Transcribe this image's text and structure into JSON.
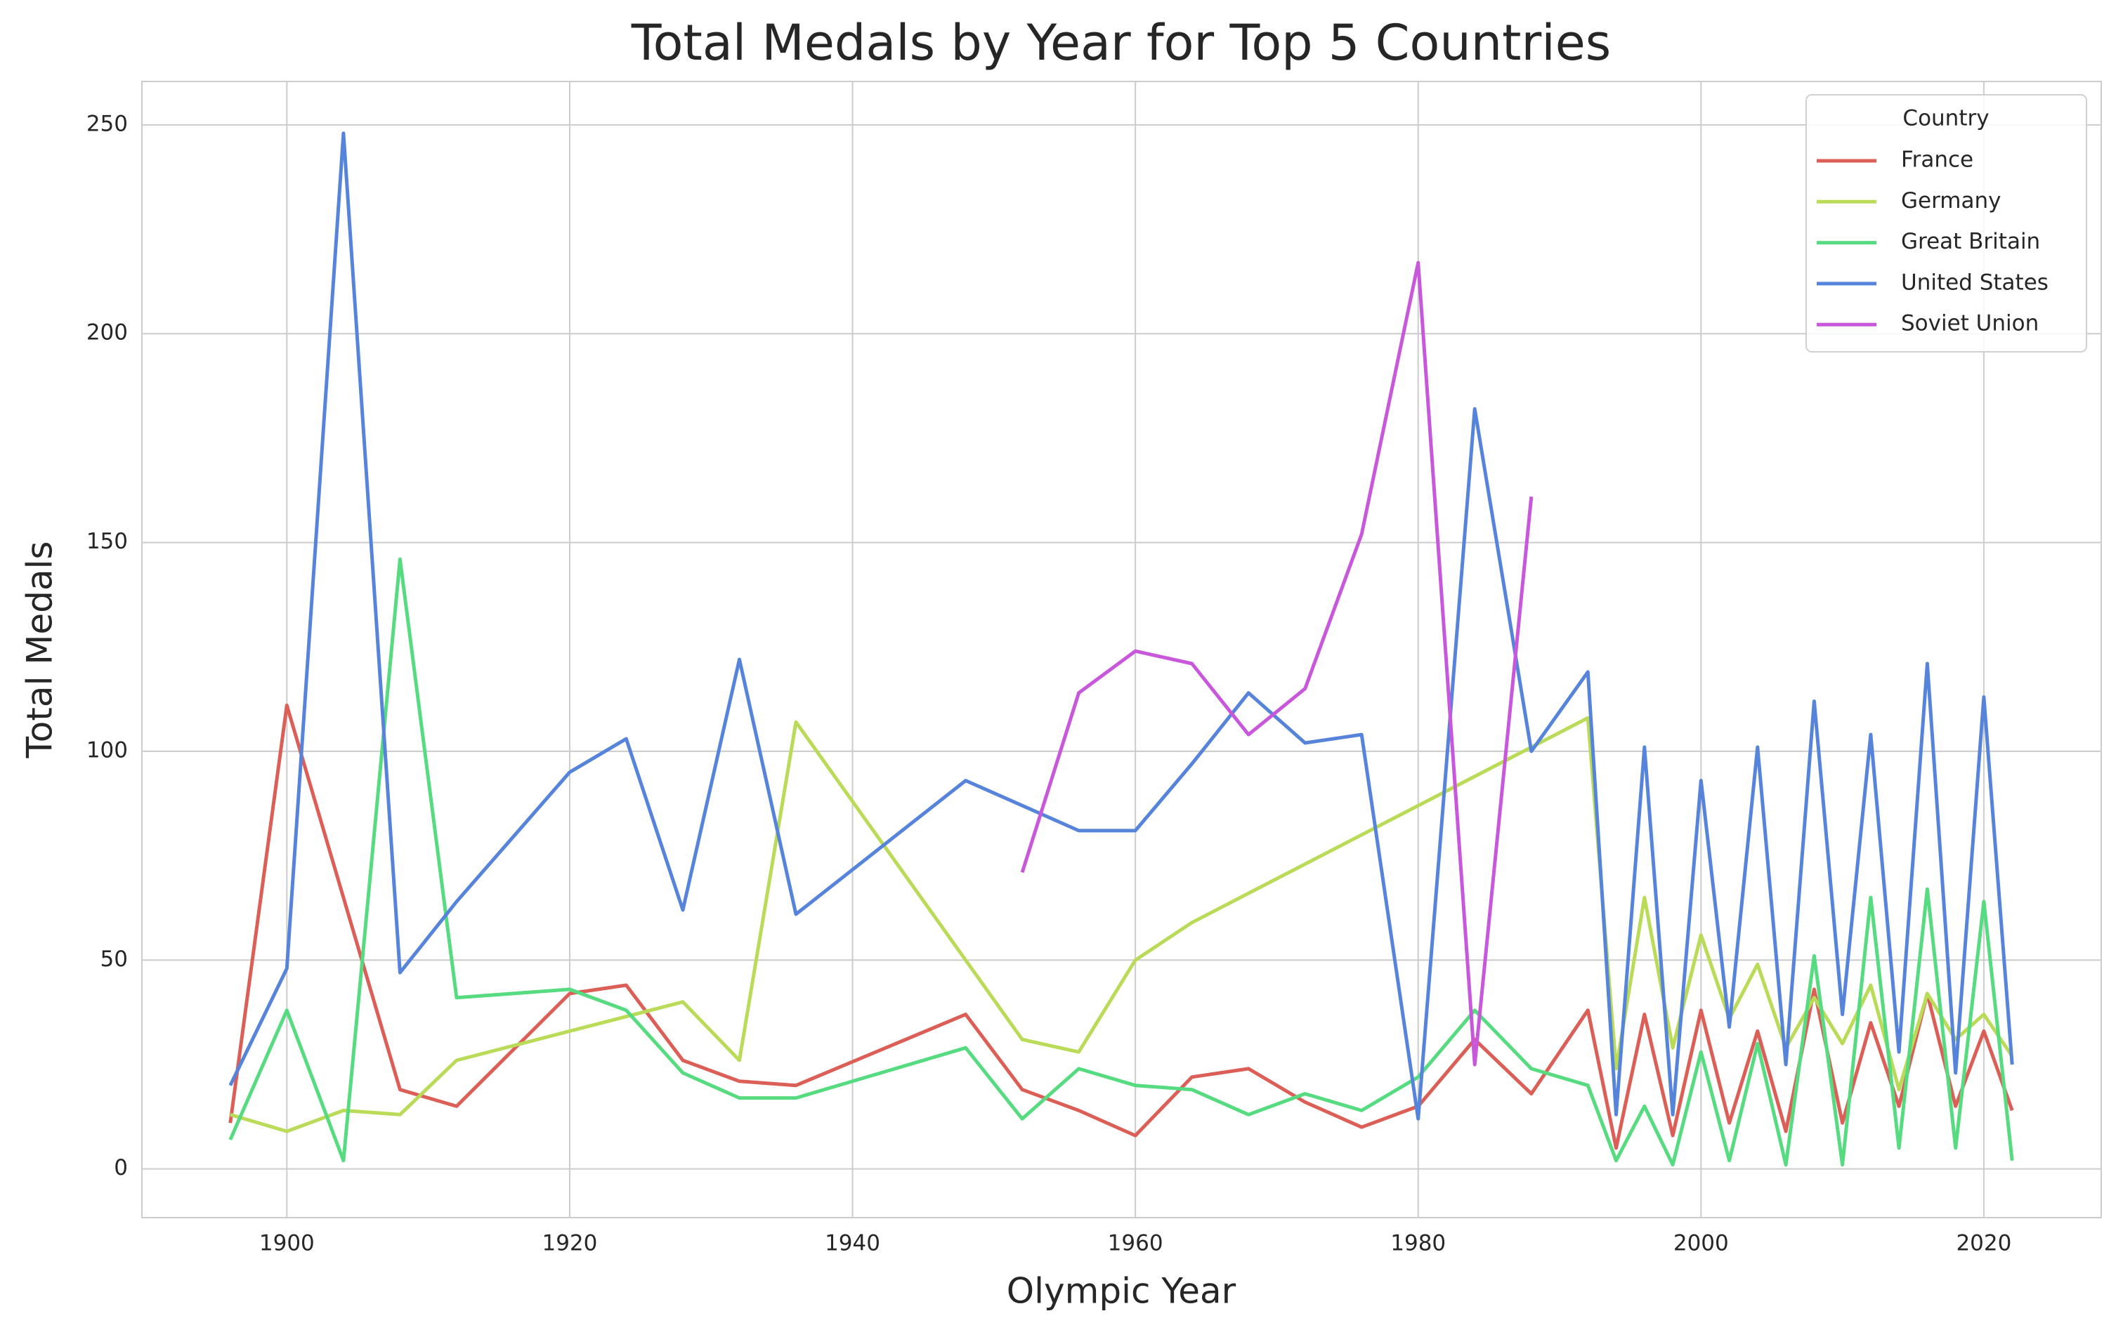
{
  "chart_data": {
    "type": "line",
    "title": "Total Medals by Year for Top 5 Countries",
    "x_label": "Olympic Year",
    "y_label": "Total Medals",
    "legend_title": "Country",
    "legend_position": "upper right",
    "grid": true,
    "xlim": [
      1889.75,
      2028.3
    ],
    "ylim": [
      -11.66,
      260.4
    ],
    "xticks": [
      1900,
      1920,
      1940,
      1960,
      1980,
      2000,
      2020
    ],
    "yticks": [
      0,
      50,
      100,
      150,
      200,
      250
    ],
    "series": [
      {
        "name": "France",
        "color": "#db5f57",
        "x": [
          1896,
          1900,
          1908,
          1912,
          1920,
          1924,
          1928,
          1932,
          1936,
          1948,
          1952,
          1956,
          1960,
          1964,
          1968,
          1972,
          1976,
          1980,
          1984,
          1988,
          1992,
          1994,
          1996,
          1998,
          2000,
          2002,
          2004,
          2006,
          2008,
          2010,
          2012,
          2014,
          2016,
          2018,
          2020,
          2022
        ],
        "values": [
          11,
          111,
          19,
          15,
          42,
          44,
          26,
          21,
          20,
          37,
          19,
          14,
          8,
          22,
          24,
          16,
          10,
          15,
          31,
          18,
          38,
          5,
          37,
          8,
          38,
          11,
          33,
          9,
          43,
          11,
          35,
          15,
          42,
          15,
          33,
          14
        ]
      },
      {
        "name": "Germany",
        "color": "#b9db57",
        "x": [
          1896,
          1900,
          1904,
          1908,
          1912,
          1928,
          1932,
          1936,
          1952,
          1956,
          1960,
          1964,
          1992,
          1994,
          1996,
          1998,
          2000,
          2002,
          2004,
          2006,
          2008,
          2010,
          2012,
          2014,
          2016,
          2018,
          2020,
          2022
        ],
        "values": [
          13,
          9,
          14,
          13,
          26,
          40,
          26,
          107,
          31,
          28,
          50,
          59,
          108,
          24,
          65,
          29,
          56,
          36,
          49,
          29,
          41,
          30,
          44,
          19,
          42,
          31,
          37,
          27
        ]
      },
      {
        "name": "Great Britain",
        "color": "#57db80",
        "x": [
          1896,
          1900,
          1904,
          1908,
          1912,
          1920,
          1924,
          1928,
          1932,
          1936,
          1948,
          1952,
          1956,
          1960,
          1964,
          1968,
          1972,
          1976,
          1980,
          1984,
          1988,
          1992,
          1994,
          1996,
          1998,
          2000,
          2002,
          2004,
          2006,
          2008,
          2010,
          2012,
          2014,
          2016,
          2018,
          2020,
          2022
        ],
        "values": [
          7,
          38,
          2,
          146,
          41,
          43,
          38,
          23,
          17,
          17,
          29,
          12,
          24,
          20,
          19,
          13,
          18,
          14,
          22,
          38,
          24,
          20,
          2,
          15,
          1,
          28,
          2,
          30,
          1,
          51,
          1,
          65,
          5,
          67,
          5,
          64,
          2
        ]
      },
      {
        "name": "United States",
        "color": "#5784db",
        "x": [
          1896,
          1900,
          1904,
          1908,
          1912,
          1920,
          1924,
          1928,
          1932,
          1936,
          1948,
          1952,
          1956,
          1960,
          1964,
          1968,
          1972,
          1976,
          1980,
          1984,
          1988,
          1992,
          1994,
          1996,
          1998,
          2000,
          2002,
          2004,
          2006,
          2008,
          2010,
          2012,
          2014,
          2016,
          2018,
          2020,
          2022
        ],
        "values": [
          20,
          48,
          248,
          47,
          64,
          95,
          103,
          62,
          122,
          61,
          93,
          87,
          81,
          81,
          97,
          114,
          102,
          104,
          12,
          182,
          100,
          119,
          13,
          101,
          13,
          93,
          34,
          101,
          25,
          112,
          37,
          104,
          28,
          121,
          23,
          113,
          25
        ]
      },
      {
        "name": "Soviet Union",
        "color": "#c957db",
        "x": [
          1952,
          1956,
          1960,
          1964,
          1968,
          1972,
          1976,
          1980,
          1984,
          1988
        ],
        "values": [
          71,
          114,
          124,
          121,
          104,
          115,
          152,
          217,
          25,
          161
        ]
      }
    ]
  }
}
